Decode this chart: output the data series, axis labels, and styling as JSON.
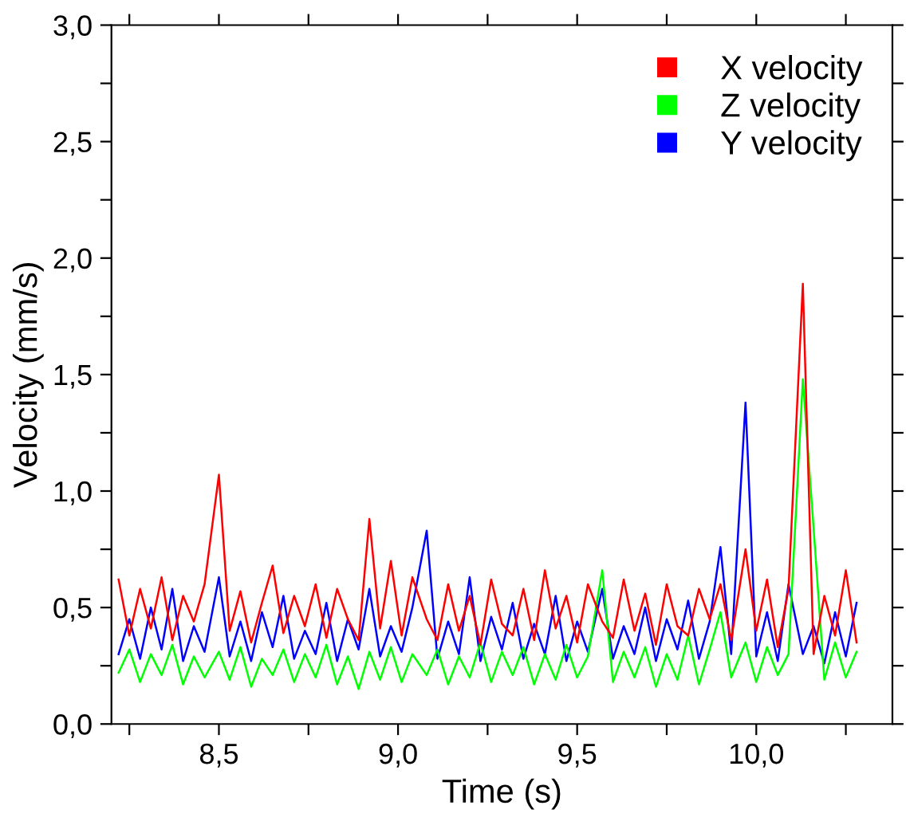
{
  "chart_data": {
    "type": "line",
    "xlabel": "Time (s)",
    "ylabel": "Velocity (mm/s)",
    "xlim": [
      8.2,
      10.38
    ],
    "ylim": [
      0,
      3.0
    ],
    "xticks": [
      {
        "value": 8.25,
        "label": null
      },
      {
        "value": 8.5,
        "label": "8,5"
      },
      {
        "value": 8.75,
        "label": null
      },
      {
        "value": 9.0,
        "label": "9,0"
      },
      {
        "value": 9.25,
        "label": null
      },
      {
        "value": 9.5,
        "label": "9,5"
      },
      {
        "value": 9.75,
        "label": null
      },
      {
        "value": 10.0,
        "label": "10,0"
      },
      {
        "value": 10.25,
        "label": null
      }
    ],
    "yticks": [
      {
        "value": 0,
        "label": "0,0"
      },
      {
        "value": 0.25,
        "label": null
      },
      {
        "value": 0.5,
        "label": "0,5"
      },
      {
        "value": 0.75,
        "label": null
      },
      {
        "value": 1.0,
        "label": "1,0"
      },
      {
        "value": 1.25,
        "label": null
      },
      {
        "value": 1.5,
        "label": "1,5"
      },
      {
        "value": 1.75,
        "label": null
      },
      {
        "value": 2.0,
        "label": "2,0"
      },
      {
        "value": 2.25,
        "label": null
      },
      {
        "value": 2.5,
        "label": "2,5"
      },
      {
        "value": 2.75,
        "label": null
      },
      {
        "value": 3.0,
        "label": "3,0"
      }
    ],
    "legend": "top right",
    "x": [
      8.22,
      8.25,
      8.28,
      8.31,
      8.34,
      8.37,
      8.4,
      8.43,
      8.46,
      8.5,
      8.53,
      8.56,
      8.59,
      8.62,
      8.65,
      8.68,
      8.71,
      8.74,
      8.77,
      8.8,
      8.83,
      8.86,
      8.89,
      8.92,
      8.95,
      8.98,
      9.01,
      9.04,
      9.08,
      9.11,
      9.14,
      9.17,
      9.2,
      9.23,
      9.26,
      9.29,
      9.32,
      9.35,
      9.38,
      9.41,
      9.44,
      9.47,
      9.5,
      9.53,
      9.57,
      9.6,
      9.63,
      9.66,
      9.69,
      9.72,
      9.75,
      9.78,
      9.81,
      9.84,
      9.87,
      9.9,
      9.93,
      9.97,
      10.0,
      10.03,
      10.06,
      10.09,
      10.13,
      10.16,
      10.19,
      10.22,
      10.25,
      10.28
    ],
    "series": [
      {
        "name": "X velocity",
        "color": "#ff0000",
        "values": [
          0.62,
          0.38,
          0.58,
          0.41,
          0.63,
          0.36,
          0.55,
          0.44,
          0.6,
          1.07,
          0.4,
          0.57,
          0.35,
          0.52,
          0.68,
          0.39,
          0.55,
          0.42,
          0.6,
          0.37,
          0.58,
          0.45,
          0.36,
          0.88,
          0.41,
          0.7,
          0.38,
          0.63,
          0.45,
          0.36,
          0.6,
          0.4,
          0.55,
          0.34,
          0.62,
          0.43,
          0.38,
          0.58,
          0.36,
          0.66,
          0.41,
          0.55,
          0.35,
          0.6,
          0.44,
          0.37,
          0.62,
          0.4,
          0.56,
          0.34,
          0.6,
          0.42,
          0.38,
          0.58,
          0.45,
          0.6,
          0.36,
          0.75,
          0.4,
          0.62,
          0.33,
          0.58,
          1.89,
          0.3,
          0.55,
          0.38,
          0.66,
          0.35
        ]
      },
      {
        "name": "Z velocity",
        "color": "#00ff00",
        "values": [
          0.22,
          0.32,
          0.18,
          0.3,
          0.21,
          0.34,
          0.17,
          0.29,
          0.2,
          0.31,
          0.19,
          0.33,
          0.16,
          0.28,
          0.21,
          0.32,
          0.18,
          0.3,
          0.2,
          0.34,
          0.17,
          0.29,
          0.15,
          0.31,
          0.19,
          0.33,
          0.18,
          0.3,
          0.21,
          0.32,
          0.17,
          0.29,
          0.2,
          0.35,
          0.18,
          0.31,
          0.21,
          0.33,
          0.17,
          0.3,
          0.19,
          0.34,
          0.2,
          0.29,
          0.66,
          0.18,
          0.31,
          0.2,
          0.33,
          0.16,
          0.3,
          0.19,
          0.38,
          0.17,
          0.32,
          0.48,
          0.2,
          0.35,
          0.18,
          0.33,
          0.21,
          0.3,
          1.48,
          0.84,
          0.19,
          0.35,
          0.2,
          0.31
        ]
      },
      {
        "name": "Y velocity",
        "color": "#0000ff",
        "values": [
          0.3,
          0.45,
          0.28,
          0.5,
          0.32,
          0.58,
          0.27,
          0.42,
          0.31,
          0.63,
          0.29,
          0.44,
          0.27,
          0.48,
          0.33,
          0.55,
          0.28,
          0.4,
          0.3,
          0.52,
          0.27,
          0.45,
          0.32,
          0.58,
          0.29,
          0.42,
          0.31,
          0.5,
          0.83,
          0.28,
          0.44,
          0.3,
          0.63,
          0.27,
          0.46,
          0.32,
          0.52,
          0.28,
          0.43,
          0.3,
          0.55,
          0.27,
          0.44,
          0.31,
          0.58,
          0.28,
          0.42,
          0.3,
          0.5,
          0.27,
          0.45,
          0.32,
          0.53,
          0.28,
          0.44,
          0.76,
          0.3,
          1.38,
          0.29,
          0.48,
          0.27,
          0.6,
          0.3,
          0.42,
          0.26,
          0.48,
          0.29,
          0.52
        ]
      }
    ]
  }
}
